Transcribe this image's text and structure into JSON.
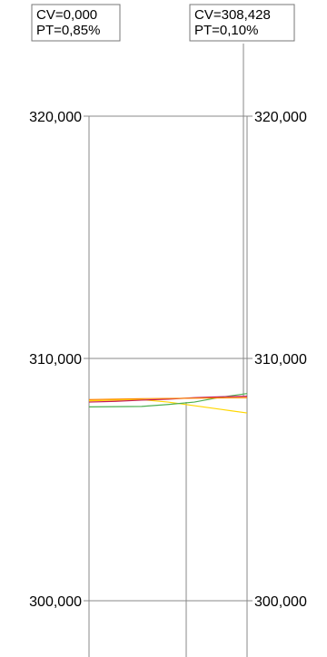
{
  "chart_data": {
    "type": "line",
    "title": "",
    "xlabel": "",
    "ylabel": "",
    "ylim": [
      298000,
      322500
    ],
    "y_ticks": [
      300000,
      310000,
      320000
    ],
    "y_tick_labels": [
      "300,000",
      "310,000",
      "320,000"
    ],
    "x": [
      0,
      1,
      2,
      3,
      4,
      5,
      6
    ],
    "series": [
      {
        "color": "#ffd700",
        "values": [
          308250,
          308280,
          308300,
          308200,
          308050,
          307900,
          307750
        ]
      },
      {
        "color": "#4caf50",
        "values": [
          308000,
          308010,
          308020,
          308100,
          308200,
          308400,
          308550
        ]
      },
      {
        "color": "#c2185b",
        "values": [
          308200,
          308230,
          308280,
          308320,
          308380,
          308420,
          308440
        ]
      },
      {
        "color": "#ff8a00",
        "values": [
          308300,
          308320,
          308340,
          308350,
          308360,
          308370,
          308380
        ]
      }
    ],
    "annotations": [
      {
        "line1": "CV=0,000",
        "line2": "PT=0,85%"
      },
      {
        "line1": "CV=308,428",
        "line2": "PT=0,10%"
      }
    ],
    "grid": true
  }
}
